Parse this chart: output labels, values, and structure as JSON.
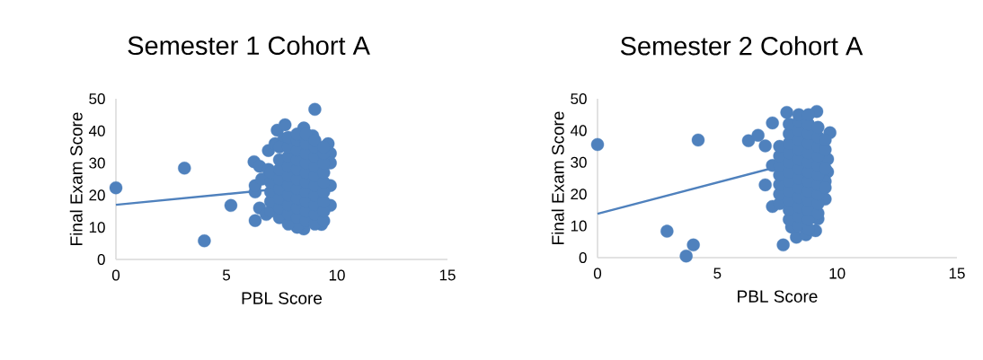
{
  "chart_data": [
    {
      "type": "scatter",
      "title": "Semester 1 Cohort A",
      "xlabel": "PBL Score",
      "ylabel": "Final Exam Score",
      "xlim": [
        0,
        15
      ],
      "ylim": [
        0,
        50
      ],
      "xticks": [
        0,
        5,
        10,
        15
      ],
      "yticks": [
        0,
        10,
        20,
        30,
        40,
        50
      ],
      "series": [
        {
          "type": "scatter",
          "marker": "circle",
          "color": "#4f81bd",
          "x": [
            0,
            3.1,
            4.0,
            5.2,
            6.3,
            6.25,
            6.9,
            7.3,
            7.65,
            9.0,
            8.5,
            8.9,
            9.6,
            9.7,
            9.7,
            9.7,
            9.7,
            9.3,
            8.5,
            8.2,
            6.3,
            6.3,
            6.5,
            6.8,
            6.5,
            6.9,
            6.6,
            7.2,
            7.6,
            7.0,
            7.0,
            7.0,
            7.0,
            7.0,
            7.4,
            7.4,
            7.4,
            7.4,
            7.4,
            7.4,
            7.4,
            7.4,
            7.8,
            7.8,
            7.8,
            7.8,
            7.8,
            7.8,
            7.8,
            7.8,
            7.8,
            7.8,
            8.2,
            8.2,
            8.2,
            8.2,
            8.2,
            8.2,
            8.2,
            8.2,
            8.2,
            8.2,
            8.6,
            8.6,
            8.6,
            8.6,
            8.6,
            8.6,
            8.6,
            8.6,
            8.6,
            8.6,
            9.0,
            9.0,
            9.0,
            9.0,
            9.0,
            9.0,
            9.0,
            9.0,
            9.0,
            9.0,
            9.4,
            9.4,
            9.4,
            9.4,
            9.4,
            9.4,
            9.4,
            9.4,
            9.4
          ],
          "values": [
            22.3,
            28.4,
            5.8,
            16.8,
            12.1,
            30.4,
            33.9,
            40.2,
            41.9,
            46.7,
            40.9,
            38.5,
            36,
            33,
            30,
            23,
            16.8,
            10.9,
            9.5,
            10,
            21,
            23,
            16,
            14,
            29,
            28,
            25,
            36,
            37.5,
            15,
            18,
            21,
            24,
            27,
            13,
            16,
            19,
            22,
            25,
            28,
            31,
            35,
            11,
            14,
            17,
            20,
            23,
            26,
            29,
            32,
            35,
            38,
            13,
            16,
            19,
            22,
            25,
            28,
            31,
            34,
            37,
            39,
            12,
            15,
            18,
            21,
            24,
            27,
            30,
            33,
            36,
            39,
            11,
            14,
            17,
            20,
            23,
            26,
            29,
            32,
            35,
            37,
            12,
            15,
            18,
            21,
            24,
            27,
            30,
            33,
            35
          ]
        },
        {
          "type": "line",
          "marker": "none",
          "color": "#4f81bd",
          "x": [
            0,
            9.7
          ],
          "values": [
            17.0,
            23.5
          ]
        }
      ]
    },
    {
      "type": "scatter",
      "title": "Semester 2 Cohort A",
      "xlabel": "PBL Score",
      "ylabel": "Final Exam Score",
      "xlim": [
        0,
        15
      ],
      "ylim": [
        0,
        50
      ],
      "xticks": [
        0,
        5,
        10,
        15
      ],
      "yticks": [
        0,
        10,
        20,
        30,
        40,
        50
      ],
      "series": [
        {
          "type": "scatter",
          "marker": "circle",
          "color": "#4f81bd",
          "x": [
            0,
            2.9,
            3.7,
            4.0,
            4.2,
            6.3,
            6.7,
            7.0,
            7.3,
            7.0,
            7.3,
            7.75,
            7.9,
            9.15,
            9.7,
            9.5,
            9.1,
            9.2,
            8.3,
            8.7,
            8.1,
            9.6,
            9.6,
            9.5,
            7.3,
            7.6,
            7.6,
            7.6,
            7.6,
            7.6,
            7.6,
            7.6,
            8.0,
            8.0,
            8.0,
            8.0,
            8.0,
            8.0,
            8.0,
            8.0,
            8.0,
            8.0,
            8.0,
            8.4,
            8.4,
            8.4,
            8.4,
            8.4,
            8.4,
            8.4,
            8.4,
            8.4,
            8.4,
            8.4,
            8.4,
            8.4,
            8.8,
            8.8,
            8.8,
            8.8,
            8.8,
            8.8,
            8.8,
            8.8,
            8.8,
            8.8,
            8.8,
            8.8,
            8.8,
            9.2,
            9.2,
            9.2,
            9.2,
            9.2,
            9.2,
            9.2,
            9.2,
            9.2,
            9.2,
            9.5,
            9.5,
            9.5,
            9.5
          ],
          "values": [
            35.6,
            8.3,
            0.5,
            4.0,
            37,
            36.8,
            38.5,
            35.2,
            42.4,
            22.9,
            16.1,
            4.0,
            45.7,
            46,
            39.3,
            18.4,
            8.5,
            12.2,
            6.4,
            7.2,
            9.6,
            31,
            27,
            24,
            29,
            17,
            20,
            23,
            26,
            29,
            32,
            35,
            12,
            15,
            18,
            21,
            24,
            27,
            30,
            33,
            36,
            39,
            42,
            10,
            13,
            16,
            19,
            22,
            25,
            28,
            31,
            34,
            37,
            40,
            43,
            45,
            9,
            12,
            15,
            18,
            21,
            24,
            27,
            30,
            33,
            36,
            39,
            42,
            45,
            14,
            17,
            20,
            23,
            26,
            29,
            32,
            35,
            38,
            41,
            22,
            28,
            34,
            37
          ]
        },
        {
          "type": "line",
          "marker": "none",
          "color": "#4f81bd",
          "x": [
            0,
            9.7
          ],
          "values": [
            13.8,
            32.9
          ]
        }
      ]
    }
  ]
}
